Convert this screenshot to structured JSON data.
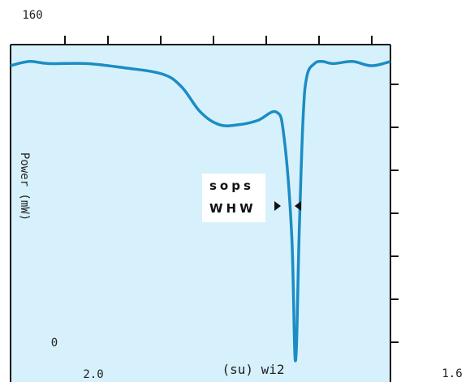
{
  "chart_data": {
    "type": "line",
    "orientation": "rotated-180",
    "corner_labels": {
      "top_left": "160",
      "bottom_left": "0",
      "bottom_right": "1.6"
    },
    "x_tick_label_bottom": "2.0",
    "x_axis_label": "(su) wi2",
    "y_axis_label": "Power (mW)",
    "annotation": {
      "line1": "sops",
      "line2": "WHW"
    },
    "grid": false,
    "colors": {
      "plot_background": "#d6f1fb",
      "line": "#1c8cc4",
      "axis": "#111111",
      "annotation_box": "#ffffff"
    },
    "series": [
      {
        "x": [
          0.0,
          0.05,
          0.1,
          0.2,
          0.3,
          0.4,
          0.45,
          0.5,
          0.55,
          0.6,
          0.65,
          0.7,
          0.72,
          0.74,
          0.75,
          0.76,
          0.77,
          0.78,
          0.8,
          0.82,
          0.85,
          0.9,
          0.95,
          1.0
        ],
        "y": [
          150,
          152,
          151,
          151,
          149,
          146,
          140,
          128,
          122,
          122,
          124,
          128,
          116,
          70,
          10,
          72,
          125,
          145,
          151,
          152,
          151,
          152,
          150,
          152
        ]
      }
    ],
    "xlim": [
      0,
      1
    ],
    "ylim": [
      0,
      160
    ]
  }
}
